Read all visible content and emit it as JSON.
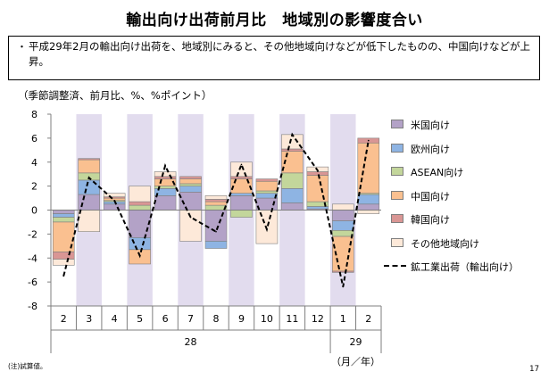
{
  "page": {
    "title": "輸出向け出荷前月比　地域別の影響度合い",
    "bullet": "・",
    "summary": "平成29年2月の輸出向け出荷を、地域別にみると、その他地域向けなどが低下したものの、中国向けなどが上昇。",
    "units_note": "（季節調整済、前月比、%、%ポイント）",
    "footnote": "(注)試算値。",
    "page_number": "17"
  },
  "chart_data": {
    "type": "bar",
    "stacked": true,
    "categories": [
      "2",
      "3",
      "4",
      "5",
      "6",
      "7",
      "8",
      "9",
      "10",
      "11",
      "12",
      "1",
      "2"
    ],
    "year_labels": [
      {
        "label": "28",
        "from": 0,
        "to": 10
      },
      {
        "label": "29",
        "from": 11,
        "to": 12
      }
    ],
    "x_unit_label": "（月／年）",
    "ylim": [
      -8,
      8
    ],
    "yticks": [
      -8,
      -6,
      -4,
      -2,
      0,
      2,
      4,
      6,
      8
    ],
    "shaded_columns": [
      1,
      3,
      5,
      7,
      9,
      11
    ],
    "shade_color": "#e2dcee",
    "series": [
      {
        "name": "米国向け",
        "color": "#b3a2c7",
        "values": [
          -0.3,
          1.3,
          0.5,
          -2.3,
          1.2,
          1.5,
          -2.6,
          1.2,
          1.0,
          0.6,
          0.1,
          -0.9,
          0.5
        ]
      },
      {
        "name": "欧州向け",
        "color": "#8eb4e3",
        "values": [
          -0.3,
          1.2,
          0.2,
          -1.0,
          0.6,
          0.5,
          -0.6,
          0.2,
          0.4,
          1.2,
          0.2,
          -0.8,
          0.8
        ]
      },
      {
        "name": "ASEAN向け",
        "color": "#c3d69b",
        "values": [
          -0.4,
          0.6,
          0.1,
          0.4,
          0.2,
          0.2,
          0.4,
          -0.6,
          0.2,
          1.3,
          0.4,
          -0.5,
          0.1
        ]
      },
      {
        "name": "中国向け",
        "color": "#fac090",
        "values": [
          -2.5,
          1.1,
          0.2,
          -1.2,
          0.6,
          0.4,
          0.3,
          1.2,
          0.8,
          1.8,
          2.2,
          -2.9,
          4.2
        ]
      },
      {
        "name": "韓国向け",
        "color": "#d99694",
        "values": [
          -0.6,
          0.1,
          0.1,
          0.3,
          0.2,
          0.2,
          0.2,
          0.2,
          0.2,
          0.2,
          0.3,
          -0.1,
          0.4
        ]
      },
      {
        "name": "その他地域向け",
        "color": "#fde9d9",
        "values": [
          -0.5,
          -1.8,
          0.3,
          1.3,
          0.4,
          -2.6,
          0.3,
          1.2,
          -2.8,
          1.2,
          0.4,
          0.5,
          -0.3
        ]
      },
      {
        "name": "鉱工業出荷（輸出向け）",
        "type": "line",
        "color": "#000000",
        "values": [
          -5.5,
          2.7,
          0.8,
          -3.8,
          3.7,
          -0.6,
          -1.8,
          3.8,
          -1.6,
          6.3,
          3.3,
          -6.4,
          5.8
        ]
      }
    ],
    "legend_order": [
      "米国向け",
      "欧州向け",
      "ASEAN向け",
      "中国向け",
      "韓国向け",
      "その他地域向け",
      "鉱工業出荷（輸出向け）"
    ],
    "grid": false,
    "legend_position": "right"
  }
}
